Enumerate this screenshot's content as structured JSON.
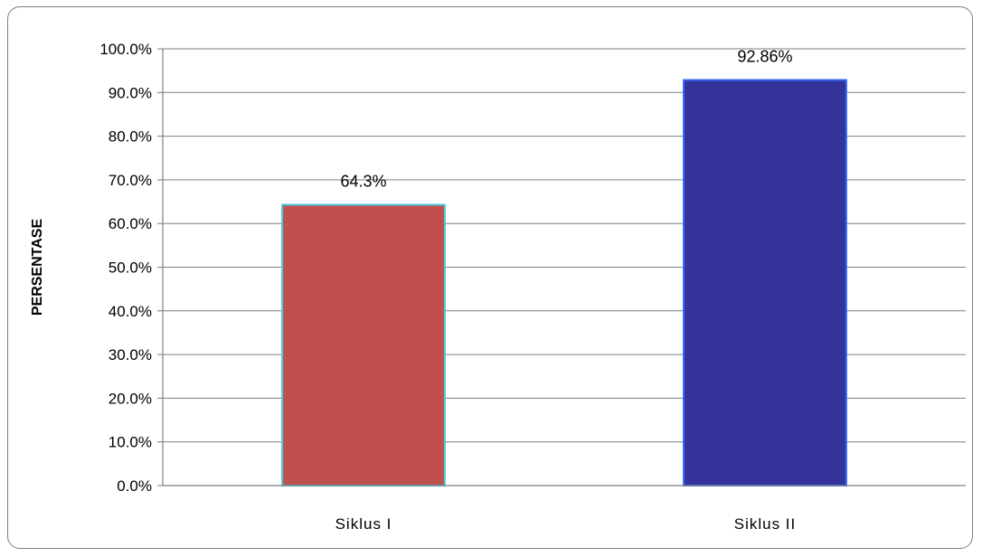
{
  "chart_data": {
    "type": "bar",
    "categories": [
      "Siklus I",
      "Siklus II"
    ],
    "values": [
      64.3,
      92.86
    ],
    "data_labels": [
      "64.3%",
      "92.86%"
    ],
    "ylabel": "PERSENTASE",
    "ylim": [
      0,
      100
    ],
    "yticks": [
      "0.0%",
      "10.0%",
      "20.0%",
      "30.0%",
      "40.0%",
      "50.0%",
      "60.0%",
      "70.0%",
      "80.0%",
      "90.0%",
      "100.0%"
    ],
    "grid": true,
    "colors": {
      "bars": [
        "#c0504d",
        "#333399"
      ],
      "bar_borders": [
        "#4bc8e0",
        "#3366ff"
      ],
      "gridline": "#7f7f7f",
      "frame": "#7f7f7f"
    }
  }
}
